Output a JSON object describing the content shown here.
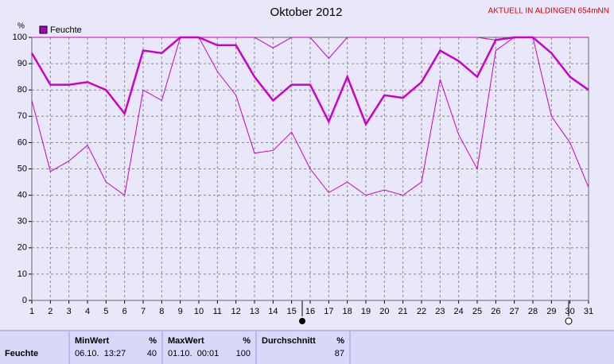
{
  "chart_data": {
    "type": "line",
    "title": "Oktober 2012",
    "subtitle": "AKTUELL IN ALDINGEN 654mNN",
    "y_label": "%",
    "categories": [
      "1",
      "2",
      "3",
      "4",
      "5",
      "6",
      "7",
      "8",
      "9",
      "10",
      "11",
      "12",
      "13",
      "14",
      "15",
      "16",
      "17",
      "18",
      "19",
      "20",
      "21",
      "22",
      "23",
      "24",
      "25",
      "26",
      "27",
      "28",
      "29",
      "30",
      "31"
    ],
    "series": [
      {
        "name": "Feuchte",
        "color": "#cc00cc",
        "values": [
          94,
          82,
          82,
          83,
          80,
          71,
          95,
          94,
          100,
          100,
          97,
          97,
          85,
          76,
          82,
          82,
          68,
          85,
          67,
          78,
          77,
          83,
          95,
          91,
          85,
          99,
          100,
          100,
          94,
          85,
          80
        ]
      },
      {
        "color": "#cc00cc",
        "values": [
          100,
          100,
          100,
          100,
          100,
          100,
          100,
          100,
          100,
          100,
          100,
          100,
          100,
          96,
          100,
          100,
          92,
          100,
          100,
          100,
          100,
          100,
          100,
          100,
          100,
          99,
          100,
          100,
          100,
          100,
          100
        ]
      },
      {
        "color": "#cc00cc",
        "values": [
          76,
          49,
          53,
          59,
          45,
          40,
          80,
          76,
          100,
          100,
          87,
          78,
          56,
          57,
          64,
          50,
          41,
          45,
          40,
          42,
          40,
          45,
          84,
          63,
          50,
          95,
          100,
          100,
          70,
          60,
          43
        ]
      }
    ],
    "ylim": [
      0,
      100
    ],
    "yticks": [
      0,
      10,
      20,
      30,
      40,
      50,
      60,
      70,
      80,
      90,
      100
    ],
    "grid": true
  },
  "table": {
    "row_label": "Feuchte",
    "columns": [
      {
        "title": "MinWert",
        "unit": "%",
        "date": "06.10.  13:27",
        "value": 40
      },
      {
        "title": "MaxWert",
        "unit": "%",
        "date": "01.10.  00:01",
        "value": 100
      },
      {
        "title": "Durchschnitt",
        "unit": "%",
        "value": 87
      }
    ]
  }
}
